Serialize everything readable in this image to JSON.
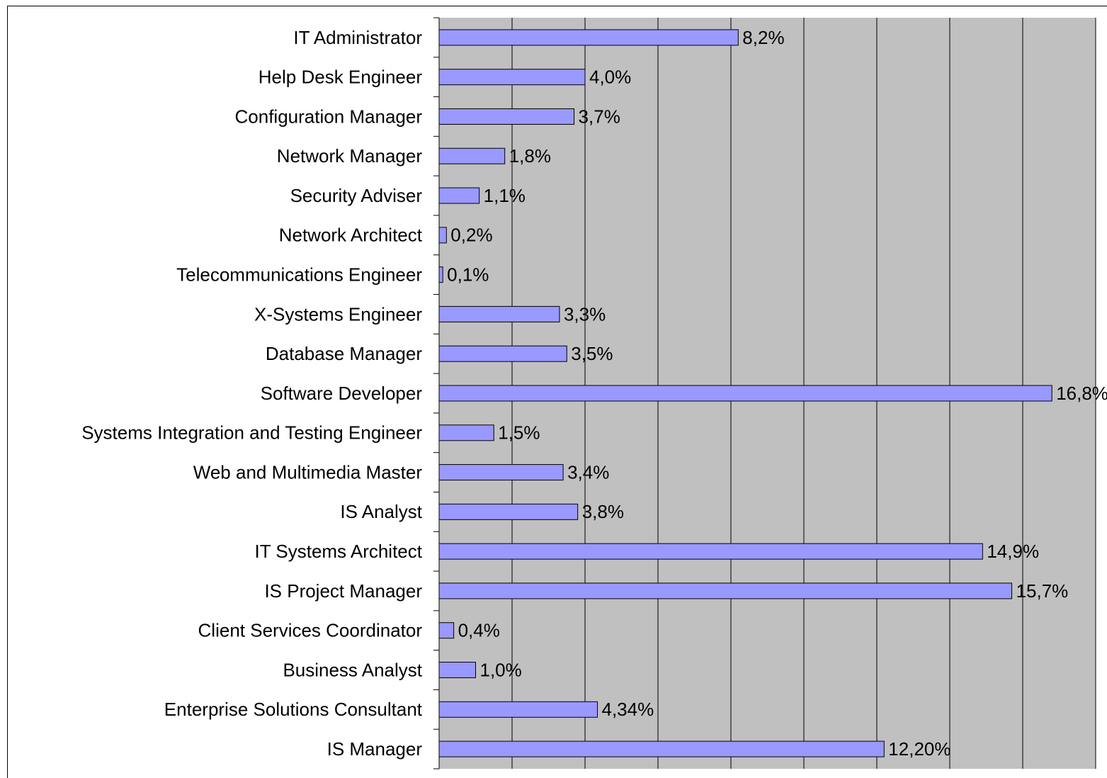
{
  "chart_data": {
    "type": "bar",
    "orientation": "horizontal",
    "categories": [
      "IT Administrator",
      "Help Desk Engineer",
      "Configuration Manager",
      "Network Manager",
      "Security Adviser",
      "Network Architect",
      "Telecommunications Engineer",
      "X-Systems Engineer",
      "Database Manager",
      "Software Developer",
      "Systems Integration and Testing Engineer",
      "Web and Multimedia Master",
      "IS Analyst",
      "IT Systems Architect",
      "IS Project Manager",
      "Client Services Coordinator",
      "Business Analyst",
      "Enterprise Solutions Consultant",
      "IS Manager"
    ],
    "values": [
      8.2,
      4.0,
      3.7,
      1.8,
      1.1,
      0.2,
      0.1,
      3.3,
      3.5,
      16.8,
      1.5,
      3.4,
      3.8,
      14.9,
      15.7,
      0.4,
      1.0,
      4.34,
      12.2
    ],
    "value_labels": [
      "8,2%",
      "4,0%",
      "3,7%",
      "1,8%",
      "1,1%",
      "0,2%",
      "0,1%",
      "3,3%",
      "3,5%",
      "16,8%",
      "1,5%",
      "3,4%",
      "3,8%",
      "14,9%",
      "15,7%",
      "0,4%",
      "1,0%",
      "4,34%",
      "12,20%"
    ],
    "color": "#9999ff",
    "background": "#c0c0c0",
    "xlim": [
      0,
      18
    ],
    "xticks": [
      0,
      2,
      4,
      6,
      8,
      10,
      12,
      14,
      16,
      18
    ],
    "grid": true
  }
}
